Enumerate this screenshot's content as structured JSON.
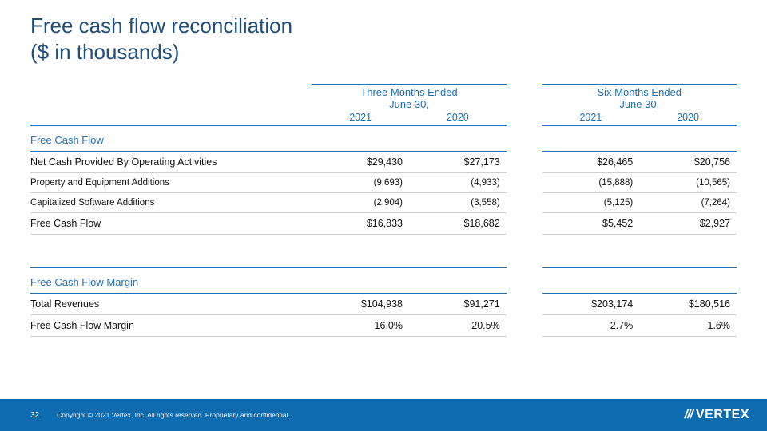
{
  "colors": {
    "title": "#1f4e79",
    "header_text": "#1f6fb2",
    "rule": "#1f6fb2",
    "row_border": "#cfcfcf",
    "body_text": "#111111",
    "footer_bg": "#0f6bb0",
    "footer_text": "#ffffff",
    "background": "#ffffff"
  },
  "typography": {
    "title_fontsize": 26,
    "header_fontsize": 13,
    "body_fontsize": 12.5,
    "subrow_fontsize": 11.5,
    "footer_small": 8.5
  },
  "title": "Free cash flow reconciliation\n($ in thousands)",
  "periods": {
    "group1": {
      "label": "Three Months Ended\nJune 30,",
      "years": [
        "2021",
        "2020"
      ]
    },
    "group2": {
      "label": "Six Months Ended\nJune 30,",
      "years": [
        "2021",
        "2020"
      ]
    }
  },
  "section1": {
    "title": "Free Cash Flow",
    "rows": [
      {
        "label": "Net Cash Provided By Operating Activities",
        "vals": [
          "$29,430",
          "$27,173",
          "$26,465",
          "$20,756"
        ],
        "strong": true
      },
      {
        "label": "Property and Equipment Additions",
        "vals": [
          "(9,693)",
          "(4,933)",
          "(15,888)",
          "(10,565)"
        ],
        "strong": false
      },
      {
        "label": "Capitalized Software Additions",
        "vals": [
          "(2,904)",
          "(3,558)",
          "(5,125)",
          "(7,264)"
        ],
        "strong": false
      },
      {
        "label": "Free Cash Flow",
        "vals": [
          "$16,833",
          "$18,682",
          "$5,452",
          "$2,927"
        ],
        "strong": true
      }
    ]
  },
  "section2": {
    "title": "Free Cash Flow Margin",
    "rows": [
      {
        "label": "Total Revenues",
        "vals": [
          "$104,938",
          "$91,271",
          "$203,174",
          "$180,516"
        ],
        "strong": true
      },
      {
        "label": "Free Cash Flow Margin",
        "vals": [
          "16.0%",
          "20.5%",
          "2.7%",
          "1.6%"
        ],
        "strong": true
      }
    ]
  },
  "footer": {
    "page": "32",
    "copyright": "Copyright © 2021 Vertex, Inc. All rights reserved. Proprietary and confidential.",
    "brand_mark": "///",
    "brand_name": "VERTEX"
  }
}
